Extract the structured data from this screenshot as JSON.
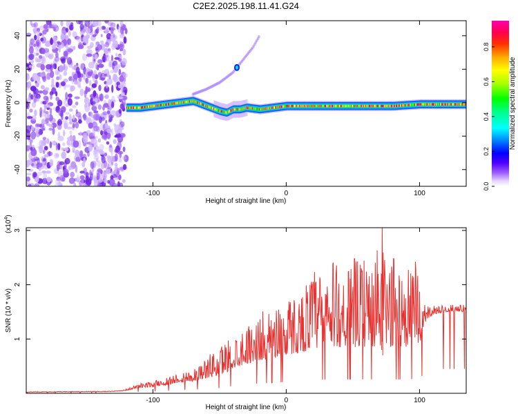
{
  "title": "C2E2.2025.198.11.41.G24",
  "chart_data": [
    {
      "type": "heatmap",
      "xlabel": "Height of straight line (km)",
      "ylabel": "Frequency (Hz)",
      "xlim": [
        -195,
        135
      ],
      "ylim": [
        -50,
        49
      ],
      "xticks": [
        -100,
        0,
        100
      ],
      "yticks": [
        -40,
        -20,
        0,
        20,
        40
      ],
      "colorbar": {
        "label": "Normalized spectral amplitude",
        "range": [
          0.0,
          0.95
        ],
        "ticks": [
          "0.0",
          "0.2",
          "0.4",
          "0.6",
          "0.8"
        ],
        "colors": [
          "#ffffff",
          "#d8b8ff",
          "#8a2be2",
          "#3a00ff",
          "#0000ff",
          "#00aaff",
          "#00ffff",
          "#00ff88",
          "#00ff00",
          "#aaff00",
          "#ffff00",
          "#ffaa00",
          "#ff4000",
          "#ff0055",
          "#ff00aa"
        ]
      },
      "features": {
        "noise_region_x": [
          -195,
          -120
        ],
        "main_line": {
          "x": [
            -120,
            -110,
            -100,
            -90,
            -80,
            -70,
            -60,
            -50,
            -45,
            -40,
            -35,
            -30,
            -20,
            -10,
            0,
            20,
            40,
            60,
            80,
            100,
            120,
            135
          ],
          "y": [
            -3,
            -3,
            -2,
            -1,
            0,
            1,
            -2,
            -5,
            -6,
            -4,
            -4,
            -3,
            -4,
            -3,
            -2,
            -2,
            -2,
            -2,
            -2,
            -1,
            -1,
            -1
          ]
        },
        "secondary_branch": {
          "x": [
            -70,
            -60,
            -50,
            -40,
            -35,
            -30,
            -25,
            -20
          ],
          "y": [
            5,
            8,
            12,
            18,
            23,
            28,
            33,
            40
          ]
        }
      }
    },
    {
      "type": "line",
      "xlabel": "Height of straight line (km)",
      "ylabel": "SNR (10 * v/v)",
      "y_scale_label": "(x10",
      "y_scale_exp": "4",
      "y_scale_close": ")",
      "xlim": [
        -195,
        135
      ],
      "ylim": [
        0,
        3.05
      ],
      "xticks": [
        -100,
        0,
        100
      ],
      "yticks": [
        1,
        2,
        3
      ],
      "series": [
        {
          "color": "#e8312f",
          "envelope": {
            "x": [
              -195,
              -130,
              -120,
              -110,
              -100,
              -90,
              -80,
              -70,
              -60,
              -50,
              -40,
              -30,
              -20,
              -10,
              0,
              10,
              20,
              30,
              40,
              50,
              60,
              70,
              80,
              90,
              100,
              105,
              110,
              120,
              135
            ],
            "base": [
              0.02,
              0.03,
              0.05,
              0.1,
              0.12,
              0.15,
              0.2,
              0.22,
              0.28,
              0.32,
              0.45,
              0.55,
              0.6,
              0.65,
              0.7,
              0.75,
              0.8,
              0.85,
              0.85,
              0.85,
              0.85,
              0.85,
              0.85,
              0.85,
              0.9,
              1.35,
              1.45,
              1.5,
              1.5
            ],
            "peak": [
              0.03,
              0.04,
              0.08,
              0.18,
              0.22,
              0.3,
              0.4,
              0.45,
              0.65,
              0.9,
              1.1,
              1.25,
              1.45,
              1.7,
              1.8,
              1.85,
              2.3,
              2.4,
              2.45,
              2.5,
              2.5,
              2.7,
              2.55,
              2.5,
              2.4,
              1.6,
              1.62,
              1.62,
              1.65
            ]
          },
          "spike": {
            "x": 72,
            "y": 3.05
          }
        }
      ]
    }
  ]
}
